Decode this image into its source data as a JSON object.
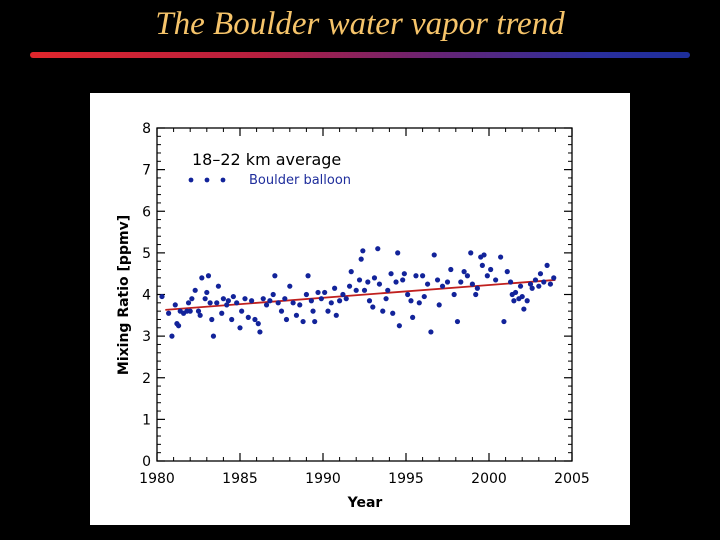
{
  "slide": {
    "title": "The Boulder water vapor trend"
  },
  "colors": {
    "background": "#000000",
    "title": "#F6C46A",
    "points": "#12239A",
    "trend": "#C0201E",
    "legend_text": "#1F2E9C"
  },
  "chart_data": {
    "type": "scatter",
    "title": "",
    "xlabel": "Year",
    "ylabel": "Mixing Ratio [ppmv]",
    "annotation": "18–22 km average",
    "xlim": [
      1980,
      2005
    ],
    "ylim": [
      0,
      8
    ],
    "xticks": [
      1980,
      1985,
      1990,
      1995,
      2000,
      2005
    ],
    "yticks": [
      0,
      1,
      2,
      3,
      4,
      5,
      6,
      7,
      8
    ],
    "legend": {
      "label": "Boulder balloon",
      "position": "top-left"
    },
    "series": [
      {
        "name": "Boulder balloon",
        "points": [
          [
            1980.3,
            3.95
          ],
          [
            1980.7,
            3.55
          ],
          [
            1980.9,
            3.0
          ],
          [
            1981.1,
            3.75
          ],
          [
            1981.2,
            3.3
          ],
          [
            1981.3,
            3.25
          ],
          [
            1981.4,
            3.6
          ],
          [
            1981.6,
            3.55
          ],
          [
            1981.8,
            3.6
          ],
          [
            1981.9,
            3.8
          ],
          [
            1982.0,
            3.6
          ],
          [
            1982.1,
            3.9
          ],
          [
            1982.3,
            4.1
          ],
          [
            1982.5,
            3.6
          ],
          [
            1982.6,
            3.5
          ],
          [
            1982.7,
            4.4
          ],
          [
            1982.9,
            3.9
          ],
          [
            1983.0,
            4.05
          ],
          [
            1983.1,
            4.45
          ],
          [
            1983.2,
            3.8
          ],
          [
            1983.3,
            3.4
          ],
          [
            1983.4,
            3.0
          ],
          [
            1983.6,
            3.8
          ],
          [
            1983.7,
            4.2
          ],
          [
            1983.9,
            3.55
          ],
          [
            1984.0,
            3.9
          ],
          [
            1984.2,
            3.75
          ],
          [
            1984.3,
            3.85
          ],
          [
            1984.5,
            3.4
          ],
          [
            1984.6,
            3.95
          ],
          [
            1984.8,
            3.8
          ],
          [
            1985.0,
            3.2
          ],
          [
            1985.1,
            3.6
          ],
          [
            1985.3,
            3.9
          ],
          [
            1985.5,
            3.45
          ],
          [
            1985.7,
            3.85
          ],
          [
            1985.9,
            3.4
          ],
          [
            1986.1,
            3.3
          ],
          [
            1986.2,
            3.1
          ],
          [
            1986.4,
            3.9
          ],
          [
            1986.6,
            3.75
          ],
          [
            1986.8,
            3.85
          ],
          [
            1987.0,
            4.0
          ],
          [
            1987.1,
            4.45
          ],
          [
            1987.3,
            3.8
          ],
          [
            1987.5,
            3.6
          ],
          [
            1987.7,
            3.9
          ],
          [
            1987.8,
            3.4
          ],
          [
            1988.0,
            4.2
          ],
          [
            1988.2,
            3.8
          ],
          [
            1988.4,
            3.5
          ],
          [
            1988.6,
            3.75
          ],
          [
            1988.8,
            3.35
          ],
          [
            1989.0,
            4.0
          ],
          [
            1989.1,
            4.45
          ],
          [
            1989.3,
            3.85
          ],
          [
            1989.4,
            3.6
          ],
          [
            1989.5,
            3.35
          ],
          [
            1989.7,
            4.05
          ],
          [
            1989.9,
            3.9
          ],
          [
            1990.1,
            4.05
          ],
          [
            1990.3,
            3.6
          ],
          [
            1990.5,
            3.8
          ],
          [
            1990.7,
            4.15
          ],
          [
            1990.8,
            3.5
          ],
          [
            1991.0,
            3.85
          ],
          [
            1991.2,
            4.0
          ],
          [
            1991.4,
            3.9
          ],
          [
            1991.6,
            4.2
          ],
          [
            1991.7,
            4.55
          ],
          [
            1992.0,
            4.1
          ],
          [
            1992.2,
            4.35
          ],
          [
            1992.3,
            4.85
          ],
          [
            1992.4,
            5.05
          ],
          [
            1992.5,
            4.1
          ],
          [
            1992.7,
            4.3
          ],
          [
            1992.8,
            3.85
          ],
          [
            1993.0,
            3.7
          ],
          [
            1993.1,
            4.4
          ],
          [
            1993.3,
            5.1
          ],
          [
            1993.4,
            4.25
          ],
          [
            1993.6,
            3.6
          ],
          [
            1993.8,
            3.9
          ],
          [
            1993.9,
            4.1
          ],
          [
            1994.1,
            4.5
          ],
          [
            1994.2,
            3.55
          ],
          [
            1994.4,
            4.3
          ],
          [
            1994.5,
            5.0
          ],
          [
            1994.6,
            3.25
          ],
          [
            1994.8,
            4.35
          ],
          [
            1994.9,
            4.5
          ],
          [
            1995.1,
            4.0
          ],
          [
            1995.3,
            3.85
          ],
          [
            1995.4,
            3.45
          ],
          [
            1995.6,
            4.45
          ],
          [
            1995.8,
            3.8
          ],
          [
            1996.0,
            4.45
          ],
          [
            1996.1,
            3.95
          ],
          [
            1996.3,
            4.25
          ],
          [
            1996.5,
            3.1
          ],
          [
            1996.7,
            4.95
          ],
          [
            1996.9,
            4.35
          ],
          [
            1997.0,
            3.75
          ],
          [
            1997.2,
            4.2
          ],
          [
            1997.5,
            4.3
          ],
          [
            1997.7,
            4.6
          ],
          [
            1997.9,
            4.0
          ],
          [
            1998.1,
            3.35
          ],
          [
            1998.3,
            4.3
          ],
          [
            1998.5,
            4.55
          ],
          [
            1998.7,
            4.45
          ],
          [
            1998.9,
            5.0
          ],
          [
            1999.0,
            4.25
          ],
          [
            1999.2,
            4.0
          ],
          [
            1999.3,
            4.15
          ],
          [
            1999.5,
            4.9
          ],
          [
            1999.6,
            4.7
          ],
          [
            1999.7,
            4.95
          ],
          [
            1999.9,
            4.45
          ],
          [
            2000.1,
            4.6
          ],
          [
            2000.4,
            4.35
          ],
          [
            2000.7,
            4.9
          ],
          [
            2000.9,
            3.35
          ],
          [
            2001.1,
            4.55
          ],
          [
            2001.3,
            4.3
          ],
          [
            2001.4,
            4.0
          ],
          [
            2001.5,
            3.85
          ],
          [
            2001.6,
            4.05
          ],
          [
            2001.8,
            3.9
          ],
          [
            2001.9,
            4.2
          ],
          [
            2002.0,
            3.95
          ],
          [
            2002.1,
            3.65
          ],
          [
            2002.3,
            3.85
          ],
          [
            2002.5,
            4.25
          ],
          [
            2002.6,
            4.15
          ],
          [
            2002.8,
            4.35
          ],
          [
            2003.0,
            4.2
          ],
          [
            2003.1,
            4.5
          ],
          [
            2003.3,
            4.3
          ],
          [
            2003.5,
            4.7
          ],
          [
            2003.7,
            4.25
          ],
          [
            2003.9,
            4.4
          ]
        ]
      },
      {
        "name": "trend",
        "type": "line",
        "points": [
          [
            1980.5,
            3.63
          ],
          [
            2004.0,
            4.35
          ]
        ]
      }
    ]
  }
}
